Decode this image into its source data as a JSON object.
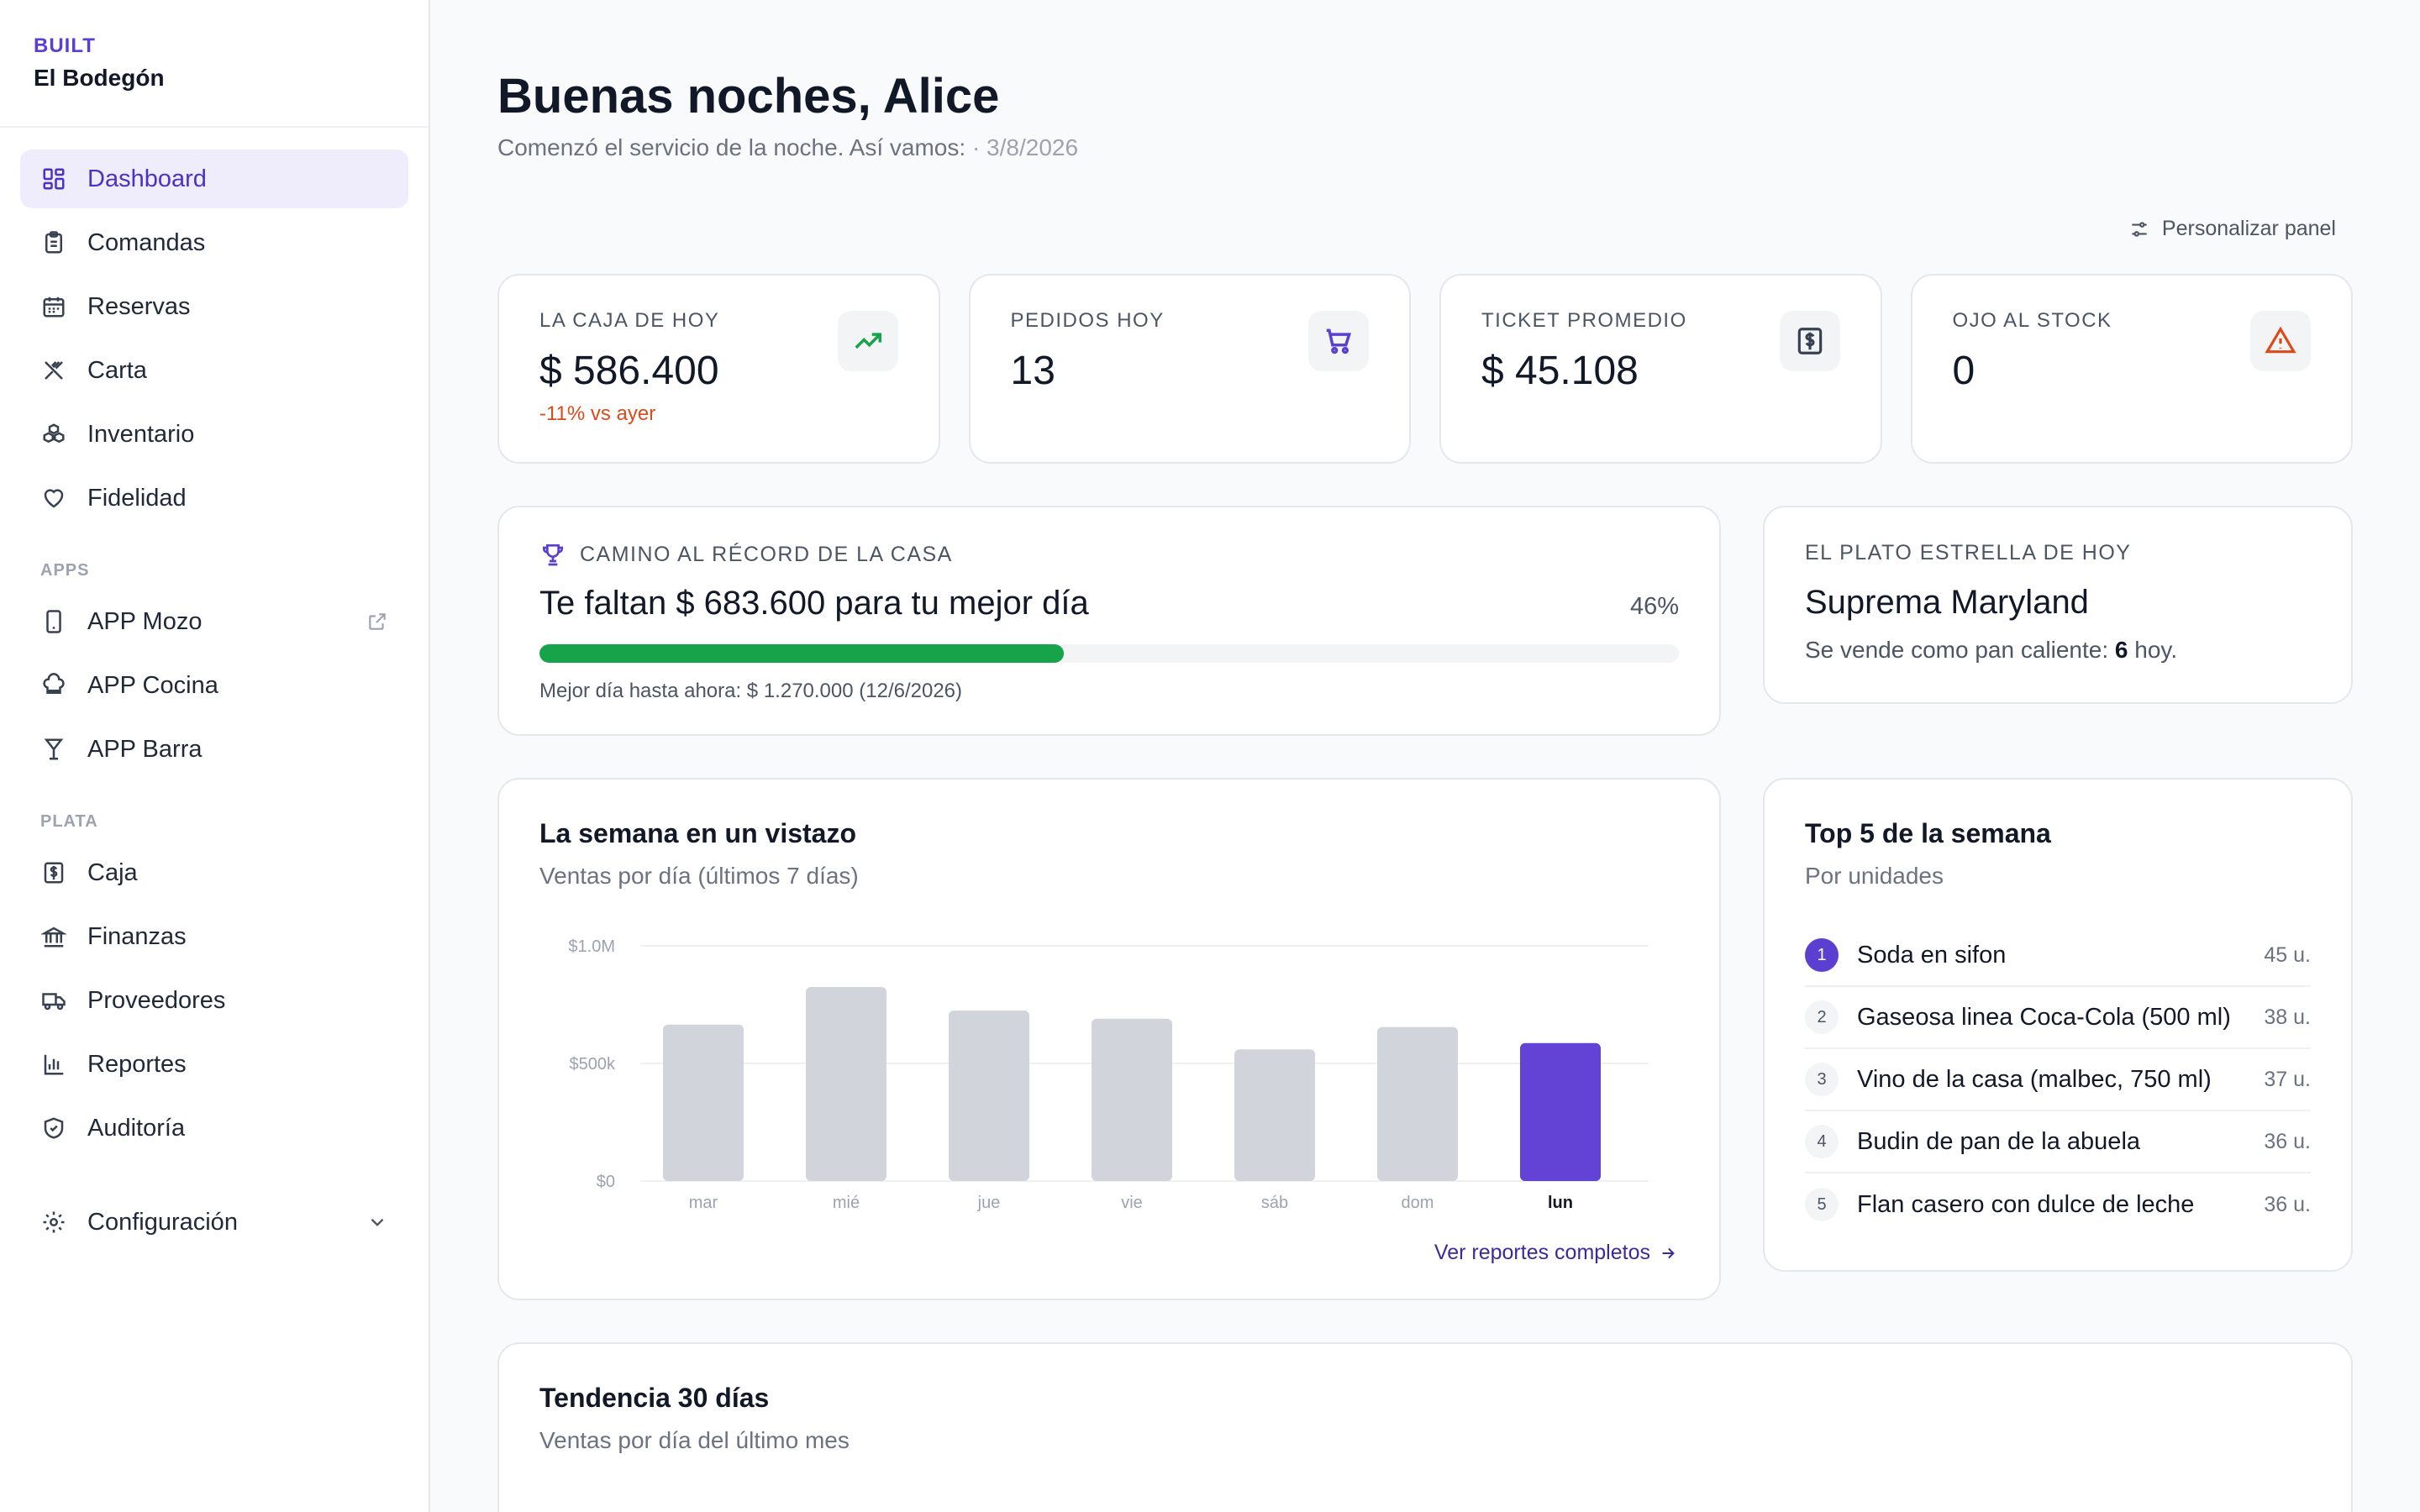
{
  "brand": {
    "kicker": "BUILT",
    "name": "El Bodegón"
  },
  "nav": {
    "main": [
      {
        "label": "Dashboard",
        "icon": "dashboard-icon",
        "active": true
      },
      {
        "label": "Comandas",
        "icon": "clipboard-icon"
      },
      {
        "label": "Reservas",
        "icon": "calendar-icon"
      },
      {
        "label": "Carta",
        "icon": "utensils-icon"
      },
      {
        "label": "Inventario",
        "icon": "boxes-icon"
      },
      {
        "label": "Fidelidad",
        "icon": "heart-icon"
      }
    ],
    "apps_title": "APPS",
    "apps": [
      {
        "label": "APP Mozo",
        "icon": "phone-icon",
        "trail": "external-link-icon"
      },
      {
        "label": "APP Cocina",
        "icon": "chef-hat-icon"
      },
      {
        "label": "APP Barra",
        "icon": "cocktail-icon"
      }
    ],
    "plata_title": "PLATA",
    "plata": [
      {
        "label": "Caja",
        "icon": "cash-icon"
      },
      {
        "label": "Finanzas",
        "icon": "bank-icon"
      },
      {
        "label": "Proveedores",
        "icon": "truck-icon"
      },
      {
        "label": "Reportes",
        "icon": "bar-chart-icon"
      },
      {
        "label": "Auditoría",
        "icon": "shield-icon"
      }
    ],
    "config": {
      "label": "Configuración",
      "icon": "gear-icon",
      "trail": "chevron-down-icon"
    }
  },
  "header": {
    "greeting": "Buenas noches, Alice",
    "subtitle": "Comenzó el servicio de la noche. Así vamos:",
    "date": "· 3/8/2026",
    "customize": "Personalizar panel"
  },
  "kpis": [
    {
      "label": "LA CAJA DE HOY",
      "value": "$ 586.400",
      "delta": "-11% vs ayer",
      "icon": "trending-up-icon",
      "color": "#16a34a"
    },
    {
      "label": "PEDIDOS HOY",
      "value": "13",
      "delta": "",
      "icon": "cart-icon",
      "color": "#5b3fd1"
    },
    {
      "label": "TICKET PROMEDIO",
      "value": "$ 45.108",
      "delta": "",
      "icon": "receipt-icon",
      "color": "#374151"
    },
    {
      "label": "OJO AL STOCK",
      "value": "0",
      "delta": "",
      "icon": "warning-icon",
      "color": "#dc4a1a"
    }
  ],
  "record": {
    "label": "CAMINO AL RÉCORD DE LA CASA",
    "title": "Te faltan $ 683.600 para tu mejor día",
    "percent_label": "46%",
    "progress": 0.46,
    "footer": "Mejor día hasta ahora: $ 1.270.000 (12/6/2026)"
  },
  "star": {
    "label": "EL PLATO ESTRELLA DE HOY",
    "name": "Suprema Maryland",
    "sub_prefix": "Se vende como pan caliente:",
    "count": "6",
    "sub_suffix": "hoy."
  },
  "week": {
    "title": "La semana en un vistazo",
    "subtitle": "Ventas por día (últimos 7 días)",
    "link": "Ver reportes completos"
  },
  "chart_data": {
    "type": "bar",
    "categories": [
      "mar",
      "mié",
      "jue",
      "vie",
      "sáb",
      "dom",
      "lun"
    ],
    "values": [
      665000,
      825000,
      725000,
      690000,
      560000,
      655000,
      586400
    ],
    "highlight_index": 6,
    "ylim": [
      0,
      1000000
    ],
    "yticks": [
      0,
      500000,
      1000000
    ],
    "ytick_labels": [
      "$0",
      "$500k",
      "$1.0M"
    ],
    "bar_color": "#d1d5db",
    "highlight_color": "#6342d6",
    "grid": true
  },
  "top5": {
    "title": "Top 5 de la semana",
    "subtitle": "Por unidades",
    "items": [
      {
        "rank": "1",
        "name": "Soda en sifon",
        "qty": "45 u."
      },
      {
        "rank": "2",
        "name": "Gaseosa linea Coca-Cola (500 ml)",
        "qty": "38 u."
      },
      {
        "rank": "3",
        "name": "Vino de la casa (malbec, 750 ml)",
        "qty": "37 u."
      },
      {
        "rank": "4",
        "name": "Budin de pan de la abuela",
        "qty": "36 u."
      },
      {
        "rank": "5",
        "name": "Flan casero con dulce de leche",
        "qty": "36 u."
      }
    ]
  },
  "trend": {
    "title": "Tendencia 30 días",
    "subtitle": "Ventas por día del último mes"
  }
}
